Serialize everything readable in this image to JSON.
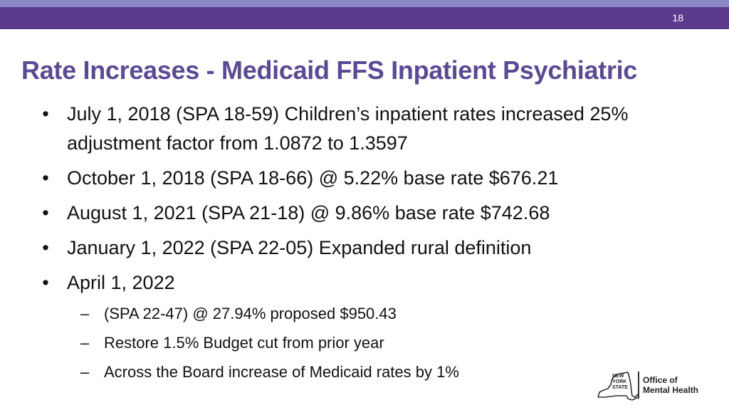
{
  "header": {
    "page_number": "18"
  },
  "title": "Rate Increases - Medicaid FFS Inpatient Psychiatric",
  "bullets": [
    {
      "text": "July 1, 2018 (SPA 18-59) Children’s inpatient rates increased 25% adjustment factor from 1.0872 to 1.3597"
    },
    {
      "text": "October 1, 2018 (SPA 18-66) @ 5.22% base rate $676.21"
    },
    {
      "text": "August 1, 2021 (SPA 21-18) @ 9.86% base rate $742.68"
    },
    {
      "text": "January 1, 2022 (SPA 22-05) Expanded rural definition"
    },
    {
      "text": "April 1, 2022",
      "sub": [
        "(SPA 22-47) @ 27.94% proposed $950.43",
        "Restore 1.5% Budget cut from prior year",
        "Across the Board increase of Medicaid rates by 1%"
      ]
    }
  ],
  "logo": {
    "state_line1": "NEW",
    "state_line2": "YORK",
    "state_line3": "STATE",
    "office_line1": "Office of",
    "office_line2": "Mental Health"
  },
  "colors": {
    "header_bar": "#5a3a8a",
    "header_bar_light": "#8b86c4",
    "title": "#5b4a93"
  },
  "bullet_glyph": "•",
  "sub_glyph": "–"
}
